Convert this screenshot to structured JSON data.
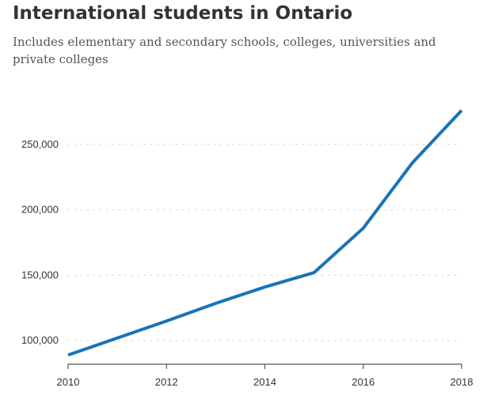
{
  "chart_data": {
    "type": "line",
    "title": "International students in Ontario",
    "subtitle": "Includes elementary and secondary schools, colleges, universities and private colleges",
    "xlabel": "",
    "ylabel": "",
    "x": [
      2010,
      2011,
      2012,
      2013,
      2014,
      2015,
      2016,
      2017,
      2018
    ],
    "values": [
      89000,
      102000,
      115000,
      128500,
      141000,
      152000,
      186000,
      236000,
      276000
    ],
    "xlim": [
      2010,
      2018
    ],
    "ylim": [
      82000,
      300000
    ],
    "x_ticks": [
      2010,
      2012,
      2014,
      2016,
      2018
    ],
    "x_tick_labels": [
      "2010",
      "2012",
      "2014",
      "2016",
      "2018"
    ],
    "y_ticks": [
      100000,
      150000,
      200000,
      250000
    ],
    "y_tick_labels": [
      "100,000",
      "150,000",
      "200,000",
      "250,000"
    ],
    "grid": true,
    "colors": {
      "line": "#1a73b5",
      "grid": "#cccccc",
      "axis": "#555555"
    }
  }
}
